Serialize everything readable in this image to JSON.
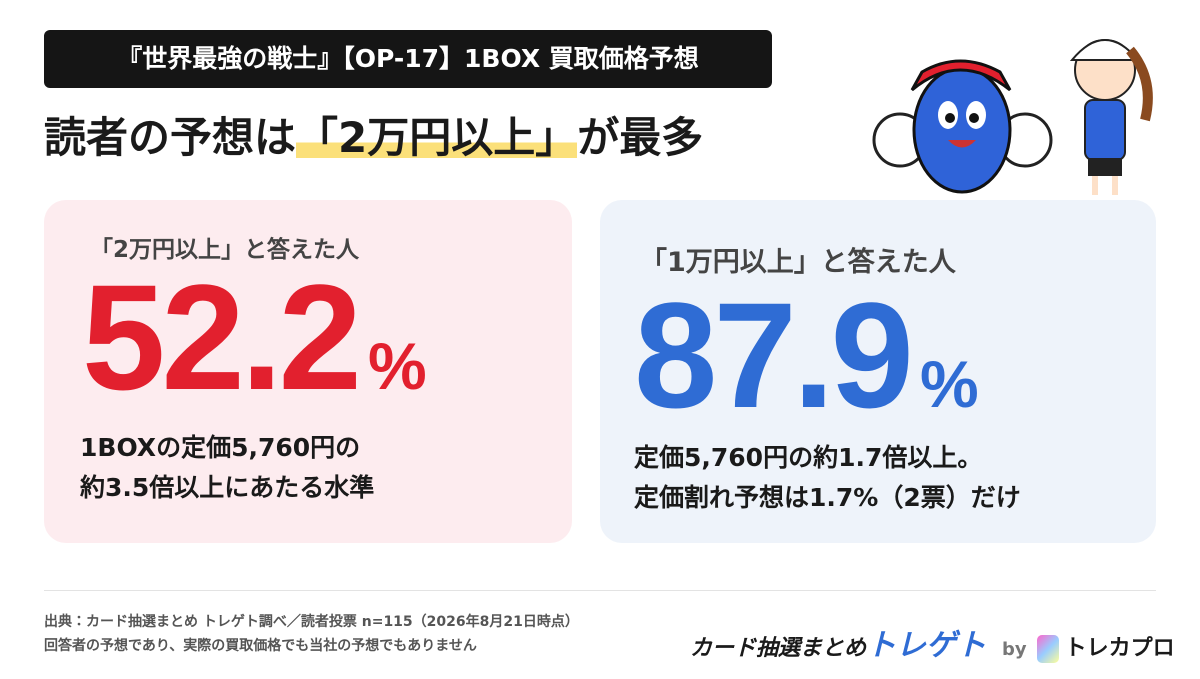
{
  "header": {
    "tag": "『世界最強の戦士』【OP-17】1BOX 買取価格予想",
    "title_prefix": "読者の予想は",
    "title_highlight": "「2万円以上」",
    "title_suffix": "が最多"
  },
  "cards": [
    {
      "label": "「2万円以上」と答えた人",
      "value": "52.2",
      "unit": "%",
      "lines": [
        "1BOXの定価5,760円の",
        "約3.5倍以上にあたる水準"
      ]
    },
    {
      "label": "「1万円以上」と答えた人",
      "value": "87.9",
      "unit": "%",
      "lines": [
        "定価5,760円の約1.7倍以上。",
        "定価割れ予想は1.7%（2票）だけ"
      ]
    }
  ],
  "footer": {
    "notes": [
      "出典：カード抽選まとめ トレゲト調べ／読者投票 n=115（2026年8月21日時点）",
      "回答者の予想であり、実際の買取価格でも当社の予想でもありません"
    ],
    "brand_name": "カード抽選まとめ",
    "brand_logo": "トレゲト",
    "by": "by",
    "partner": "トレカプロ"
  }
}
